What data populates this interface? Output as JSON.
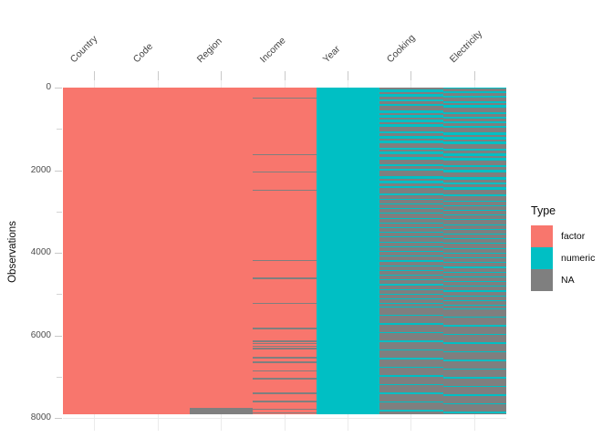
{
  "figure": {
    "y_axis_title": "Observations"
  },
  "legend": {
    "title": "Type",
    "entries": [
      {
        "label": "factor",
        "color": "#F8766D"
      },
      {
        "label": "numeric",
        "color": "#00BFC4"
      },
      {
        "label": "NA",
        "color": "#7F7F7F"
      }
    ]
  },
  "chart_data": {
    "type": "heatmap",
    "title": "",
    "xlabel": "",
    "ylabel": "Observations",
    "x_categories": [
      "Country",
      "Code",
      "Region",
      "Income",
      "Year",
      "Cooking",
      "Electricity"
    ],
    "y_ticks": [
      0,
      2000,
      4000,
      6000,
      8000
    ],
    "y_minor_ticks": [
      1000,
      3000,
      5000,
      7000
    ],
    "ylim": [
      0,
      8000
    ],
    "y_reversed": true,
    "grid": true,
    "legend_position": "right",
    "legend_title": "Type",
    "type_colors": {
      "factor": "#F8766D",
      "numeric": "#00BFC4",
      "NA": "#7F7F7F"
    },
    "n_rows": 7910,
    "columns": [
      {
        "name": "Country",
        "base_type": "factor",
        "na_intervals": []
      },
      {
        "name": "Code",
        "base_type": "factor",
        "na_intervals": []
      },
      {
        "name": "Region",
        "base_type": "factor",
        "na_intervals": [
          [
            7758,
            7910
          ]
        ]
      },
      {
        "name": "Income",
        "base_type": "factor",
        "na_intervals": [
          [
            240,
            276
          ],
          [
            1608,
            1644
          ],
          [
            2030,
            2066
          ],
          [
            2472,
            2508
          ],
          [
            4166,
            4202
          ],
          [
            4600,
            4636
          ],
          [
            5206,
            5242
          ],
          [
            5814,
            5850
          ],
          [
            6128,
            6158
          ],
          [
            6188,
            6218
          ],
          [
            6248,
            6278
          ],
          [
            6308,
            6338
          ],
          [
            6520,
            6556
          ],
          [
            6640,
            6676
          ],
          [
            6846,
            6882
          ],
          [
            7038,
            7074
          ],
          [
            7390,
            7426
          ],
          [
            7580,
            7616
          ],
          [
            7768,
            7804
          ],
          [
            7858,
            7894
          ]
        ]
      },
      {
        "name": "Year",
        "base_type": "numeric",
        "na_intervals": []
      },
      {
        "name": "Cooking",
        "base_type": "numeric",
        "na_intervals": [
          [
            0,
            55
          ],
          [
            110,
            165
          ],
          [
            220,
            292
          ],
          [
            340,
            395
          ],
          [
            450,
            562
          ],
          [
            615,
            670
          ],
          [
            725,
            780
          ],
          [
            835,
            890
          ],
          [
            950,
            1062
          ],
          [
            1112,
            1168
          ],
          [
            1230,
            1285
          ],
          [
            1340,
            1452
          ],
          [
            1500,
            1558
          ],
          [
            1620,
            1676
          ],
          [
            1740,
            1852
          ],
          [
            1900,
            1958
          ],
          [
            2020,
            2142
          ],
          [
            2200,
            2258
          ],
          [
            2320,
            2378
          ],
          [
            2440,
            2562
          ],
          [
            2600,
            2690
          ],
          [
            2715,
            2805
          ],
          [
            2830,
            2920
          ],
          [
            2945,
            3035
          ],
          [
            3060,
            3150
          ],
          [
            3175,
            3265
          ],
          [
            3290,
            3380
          ],
          [
            3405,
            3495
          ],
          [
            3520,
            3610
          ],
          [
            3635,
            3725
          ],
          [
            3750,
            3840
          ],
          [
            3865,
            3955
          ],
          [
            3980,
            4070
          ],
          [
            4095,
            4185
          ],
          [
            4210,
            4300
          ],
          [
            4325,
            4415
          ],
          [
            4440,
            4530
          ],
          [
            4555,
            4645
          ],
          [
            4670,
            4760
          ],
          [
            4785,
            4875
          ],
          [
            4900,
            4990
          ],
          [
            5015,
            5105
          ],
          [
            5130,
            5220
          ],
          [
            5245,
            5300
          ],
          [
            5320,
            5500
          ],
          [
            5530,
            5710
          ],
          [
            5740,
            5920
          ],
          [
            5950,
            6130
          ],
          [
            6160,
            6340
          ],
          [
            6370,
            6550
          ],
          [
            6580,
            6760
          ],
          [
            6790,
            6970
          ],
          [
            7000,
            7180
          ],
          [
            7210,
            7390
          ],
          [
            7420,
            7600
          ],
          [
            7630,
            7810
          ],
          [
            7840,
            7910
          ]
        ]
      },
      {
        "name": "Electricity",
        "base_type": "numeric",
        "na_intervals": [
          [
            30,
            85
          ],
          [
            140,
            195
          ],
          [
            250,
            322
          ],
          [
            370,
            425
          ],
          [
            480,
            592
          ],
          [
            645,
            700
          ],
          [
            755,
            810
          ],
          [
            865,
            920
          ],
          [
            980,
            1092
          ],
          [
            1142,
            1198
          ],
          [
            1260,
            1315
          ],
          [
            1370,
            1482
          ],
          [
            1530,
            1588
          ],
          [
            1650,
            1706
          ],
          [
            1770,
            1882
          ],
          [
            1930,
            1988
          ],
          [
            2050,
            2172
          ],
          [
            2230,
            2288
          ],
          [
            2350,
            2408
          ],
          [
            2470,
            2592
          ],
          [
            2640,
            2730
          ],
          [
            2755,
            2845
          ],
          [
            2870,
            2960
          ],
          [
            2985,
            3075
          ],
          [
            3100,
            3190
          ],
          [
            3215,
            3305
          ],
          [
            3330,
            3420
          ],
          [
            3445,
            3535
          ],
          [
            3560,
            3650
          ],
          [
            3675,
            3765
          ],
          [
            3790,
            3880
          ],
          [
            3905,
            3995
          ],
          [
            4020,
            4110
          ],
          [
            4135,
            4225
          ],
          [
            4250,
            4340
          ],
          [
            4365,
            4455
          ],
          [
            4480,
            4570
          ],
          [
            4595,
            4685
          ],
          [
            4710,
            4800
          ],
          [
            4825,
            4915
          ],
          [
            4940,
            5030
          ],
          [
            5055,
            5145
          ],
          [
            5170,
            5260
          ],
          [
            5285,
            5340
          ],
          [
            5360,
            5540
          ],
          [
            5570,
            5750
          ],
          [
            5780,
            5960
          ],
          [
            5990,
            6170
          ],
          [
            6200,
            6380
          ],
          [
            6410,
            6590
          ],
          [
            6620,
            6800
          ],
          [
            6830,
            7010
          ],
          [
            7040,
            7220
          ],
          [
            7250,
            7430
          ],
          [
            7460,
            7640
          ],
          [
            7670,
            7850
          ],
          [
            7880,
            7910
          ]
        ]
      }
    ]
  }
}
